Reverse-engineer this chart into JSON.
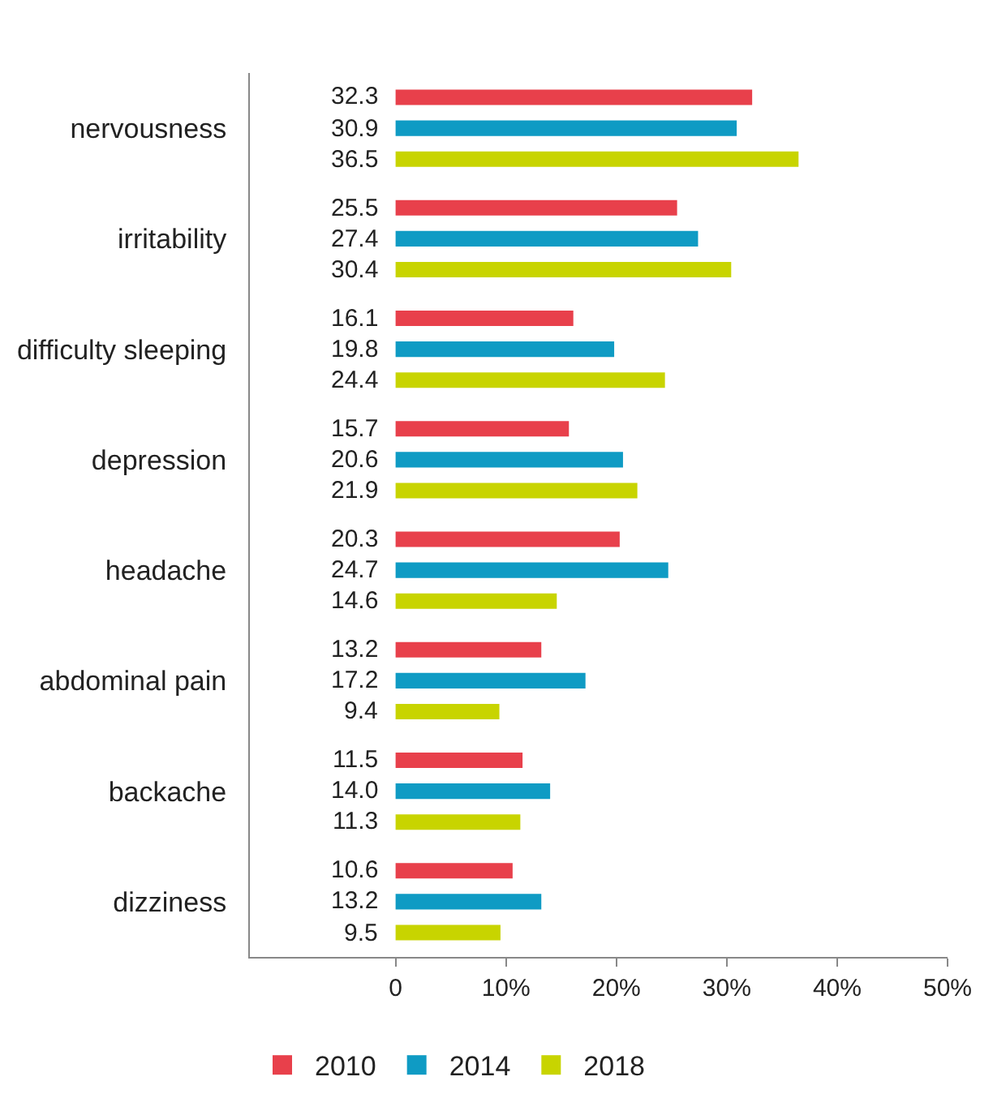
{
  "chart_data": {
    "type": "bar",
    "orientation": "horizontal",
    "categories": [
      "nervousness",
      "irritability",
      "difficulty sleeping",
      "depression",
      "headache",
      "abdominal pain",
      "backache",
      "dizziness"
    ],
    "series": [
      {
        "name": "2010",
        "color": "#e8404b",
        "values": [
          32.3,
          25.5,
          16.1,
          15.7,
          20.3,
          13.2,
          11.5,
          10.6
        ],
        "value_labels": [
          "32.3",
          "25.5",
          "16.1",
          "15.7",
          "20.3",
          "13.2",
          "11.5",
          "10.6"
        ]
      },
      {
        "name": "2014",
        "color": "#0f9bc4",
        "values": [
          30.9,
          27.4,
          19.8,
          20.6,
          24.7,
          17.2,
          14.0,
          13.2
        ],
        "value_labels": [
          "30.9",
          "27.4",
          "19.8",
          "20.6",
          "24.7",
          "17.2",
          "14.0",
          "13.2"
        ]
      },
      {
        "name": "2018",
        "color": "#c8d400",
        "values": [
          36.5,
          30.4,
          24.4,
          21.9,
          14.6,
          9.4,
          11.3,
          9.5
        ],
        "value_labels": [
          "36.5",
          "30.4",
          "24.4",
          "21.9",
          "14.6",
          "9.4",
          "11.3",
          "9.5"
        ]
      }
    ],
    "xlim": [
      -13.2,
      50
    ],
    "xticks": [
      0,
      {
        "value": 10,
        "label": "10%"
      },
      {
        "value": 20,
        "label": "20%"
      },
      {
        "value": 30,
        "label": "30%"
      },
      {
        "value": 40,
        "label": "40%"
      },
      {
        "value": 50,
        "label": "50%"
      }
    ],
    "legend": "bottom"
  }
}
